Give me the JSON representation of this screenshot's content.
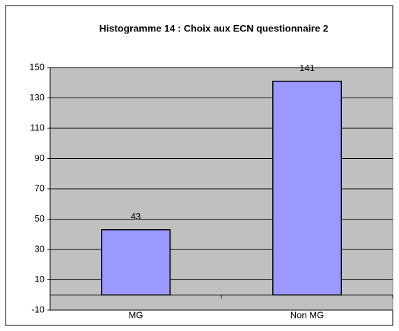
{
  "chart_data": {
    "type": "bar",
    "title": "Histogramme 14 : Choix aux ECN questionnaire 2",
    "categories": [
      "MG",
      "Non MG"
    ],
    "values": [
      43,
      141
    ],
    "color": "#9999ff",
    "ylim": [
      -10,
      150
    ],
    "yticks": [
      -10,
      10,
      30,
      50,
      70,
      90,
      110,
      130,
      150
    ],
    "grid": true
  }
}
